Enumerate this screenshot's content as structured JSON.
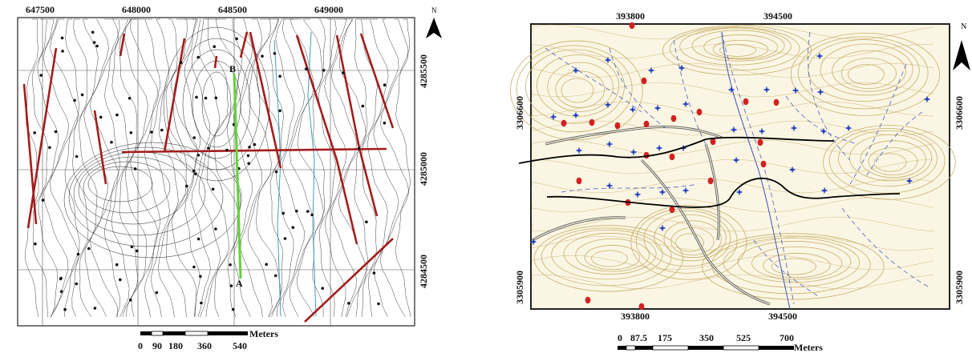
{
  "left_map": {
    "top_coords": [
      "647500",
      "648000",
      "648500",
      "649000"
    ],
    "right_coords": [
      "4285500",
      "4285000",
      "4284500"
    ],
    "point_a": "A",
    "point_b": "B",
    "north": "N",
    "scale": {
      "ticks": [
        "0",
        "90",
        "180",
        "360",
        "540"
      ],
      "unit": "Meters"
    }
  },
  "right_map": {
    "top_coords": [
      "393800",
      "394500"
    ],
    "bottom_coords": [
      "393800",
      "394500"
    ],
    "left_coords": [
      "3306600",
      "3305900"
    ],
    "right_coords": [
      "3306600",
      "3305900"
    ],
    "north": "N",
    "scale": {
      "ticks": [
        "0",
        "87.5",
        "175",
        "350",
        "525",
        "700"
      ],
      "unit": "Meters"
    }
  },
  "colors": {
    "fault": "#a31d1d",
    "section_line": "#63d13b",
    "stream_left": "#3aa0b8",
    "contour_left": "#222222",
    "contour_right": "#c8ae6a",
    "drainage_right": "#3b4fb8",
    "well_red": "#d42020",
    "well_blue": "#1f3fbf"
  }
}
